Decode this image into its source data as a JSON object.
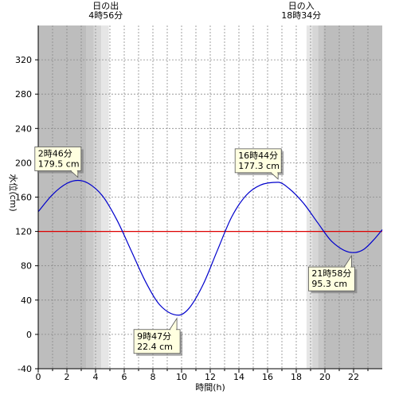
{
  "chart_data": {
    "type": "line",
    "xlabel": "時間(h)",
    "ylabel": "水位(cm)",
    "xlim": [
      0,
      24
    ],
    "ylim": [
      -40,
      360
    ],
    "x_ticks": [
      0,
      2,
      4,
      6,
      8,
      10,
      12,
      14,
      16,
      18,
      20,
      22
    ],
    "y_ticks": [
      -40,
      0,
      40,
      80,
      120,
      160,
      200,
      240,
      280,
      320
    ],
    "grid": true,
    "sunrise": {
      "title": "日の出",
      "time": "4時56分",
      "hour": 4.933
    },
    "sunset": {
      "title": "日の入",
      "time": "18時34分",
      "hour": 18.567
    },
    "reference_level": {
      "value": 120,
      "color": "#dd0000"
    },
    "tide_color": "#0000cc",
    "tide_points": [
      {
        "x": 0.0,
        "y": 143
      },
      {
        "x": 1.0,
        "y": 163
      },
      {
        "x": 2.0,
        "y": 176
      },
      {
        "x": 2.767,
        "y": 179.5
      },
      {
        "x": 3.5,
        "y": 176
      },
      {
        "x": 4.5,
        "y": 161
      },
      {
        "x": 5.5,
        "y": 133
      },
      {
        "x": 6.5,
        "y": 97
      },
      {
        "x": 7.5,
        "y": 61
      },
      {
        "x": 8.5,
        "y": 34
      },
      {
        "x": 9.783,
        "y": 22.4
      },
      {
        "x": 10.5,
        "y": 30
      },
      {
        "x": 11.5,
        "y": 58
      },
      {
        "x": 12.5,
        "y": 98
      },
      {
        "x": 13.5,
        "y": 137
      },
      {
        "x": 14.5,
        "y": 162
      },
      {
        "x": 15.5,
        "y": 174
      },
      {
        "x": 16.733,
        "y": 177.3
      },
      {
        "x": 17.5,
        "y": 170
      },
      {
        "x": 18.5,
        "y": 153
      },
      {
        "x": 19.5,
        "y": 130
      },
      {
        "x": 20.5,
        "y": 108
      },
      {
        "x": 21.967,
        "y": 95.3
      },
      {
        "x": 22.7,
        "y": 99
      },
      {
        "x": 23.5,
        "y": 112
      },
      {
        "x": 24.0,
        "y": 122
      }
    ],
    "extremes": [
      {
        "time": "2時46分",
        "value": "179.5 cm",
        "x": 2.767,
        "y": 179.5,
        "placement": "above"
      },
      {
        "time": "9時47分",
        "value": "22.4 cm",
        "x": 9.783,
        "y": 22.4,
        "placement": "below"
      },
      {
        "time": "16時44分",
        "value": "177.3 cm",
        "x": 16.733,
        "y": 177.3,
        "placement": "above"
      },
      {
        "time": "21時58分",
        "value": "95.3 cm",
        "x": 21.967,
        "y": 95.3,
        "placement": "below"
      }
    ]
  }
}
